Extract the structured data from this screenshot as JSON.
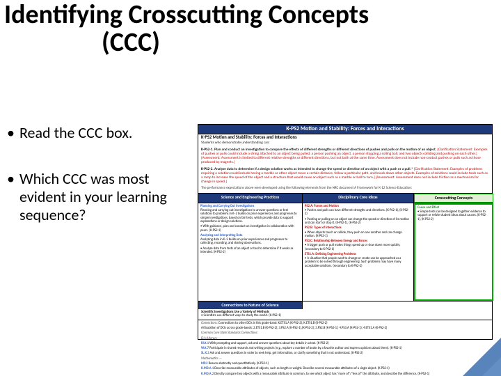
{
  "title": {
    "line1": "Identifying Crosscutting Concepts",
    "line2": "(CCC)"
  },
  "bullets": [
    "Read the CCC box.",
    "Which CCC was most evident in your learning sequence?"
  ],
  "figure": {
    "header": "K-PS2  Motion and Stability: Forces and Interactions",
    "subhead": "K-PS2   Motion and Stability: Forces and Interactions",
    "intro": "Students who demonstrate understanding can:",
    "pe": [
      {
        "code": "K-PS2-1.",
        "text": "Plan and conduct an investigation to compare the effects of different strengths or different directions of pushes and pulls on the motion of an object.",
        "clar": "[Clarification Statement: Examples of pushes or pulls could include a string attached to an object being pulled, a person pushing an object, a person stopping a rolling ball, and two objects colliding and pushing on each other.] [Assessment: Assessment is limited to different relative strengths or different directions, but not both at the same time. Assessment does not include non-contact pushes or pulls such as those produced by magnets.]"
      },
      {
        "code": "K-PS2-2.",
        "text": "Analyze data to determine if a design solution works as intended to change the speed or direction of an object with a push or a pull.*",
        "clar": "[Clarification Statement: Examples of problems requiring a solution could include having a marble or other object move a certain distance, follow a particular path, and knock down other objects. Examples of solutions could include tools such as a ramp to increase the speed of the object and a structure that would cause an object such as a marble or ball to turn.] [Assessment: Assessment does not include friction as a mechanism for change in speed.]"
      }
    ],
    "note": "The performance expectations above were developed using the following elements from the NRC document A Framework for K-12 Science Education:",
    "strip": {
      "sep": "Science and Engineering Practices",
      "dci": "Disciplinary Core Ideas",
      "ccc": "Crosscutting Concepts"
    },
    "cols": {
      "sep": {
        "h1": "Planning and Carrying Out Investigations",
        "p1": "Planning and carrying out investigations to answer questions or test solutions to problems in K–2 builds on prior experiences and progresses to simple investigations, based on fair tests, which provide data to support explanations or design solutions.",
        "b1": "With guidance, plan and conduct an investigation in collaboration with peers. (K-PS2-1)",
        "h2": "Analyzing and Interpreting Data",
        "p2": "Analyzing data in K–2 builds on prior experiences and progresses to collecting, recording, and sharing observations.",
        "b2": "Analyze data from tests of an object or tool to determine if it works as intended. (K-PS2-2)"
      },
      "dci": {
        "h1": "PS2.A: Forces and Motion",
        "b1": "Pushes and pulls can have different strengths and directions. (K-PS2-1), (K-PS2-2)",
        "b2": "Pushing or pulling on an object can change the speed or direction of its motion and can start or stop it. (K-PS2-1), (K-PS2-2)",
        "h2": "PS2.B: Types of Interactions",
        "b3": "When objects touch or collide, they push on one another and can change motion. (K-PS2-1)",
        "h3": "PS3.C: Relationship Between Energy and Forces",
        "b4": "A bigger push or pull makes things speed up or slow down more quickly. (secondary to K-PS2-1)",
        "h4": "ETS1.A: Defining Engineering Problems",
        "b5": "A situation that people want to change or create can be approached as a problem to be solved through engineering. Such problems may have many acceptable solutions. (secondary to K-PS2-2)"
      },
      "ccc": {
        "h1": "Cause and Effect",
        "b1": "Simple tests can be designed to gather evidence to support or refute student ideas about causes. (K-PS2-1), (K-PS2-2)"
      }
    },
    "nature": {
      "head": "Connections to Nature of Science",
      "h": "Scientific Investigations Use a Variety of Methods",
      "b": "Scientists use different ways to study the world. (K-PS2-1)"
    },
    "foot": {
      "conn": "Connections to other DCIs in this grade-band:  K.ETS1.A (K-PS2-2); K.ETS1.B (K-PS2-2)",
      "art": "Articulation of DCIs across grade-bands:  2.ETS1.B (K-PS2-2); 3.PS2.A (K-PS2-1),(K-PS2-2); 3.PS2.B (K-PS2-1); 4.PS3.A (K-PS2-1); 4.ETS1.A (K-PS2-2)",
      "ccss_label": "Common Core State Standards Connections:",
      "ela_label": "ELA/Literacy —",
      "ela": [
        {
          "code": "RI.K.1",
          "txt": "With prompting and support, ask and answer questions about key details in a text. (K-PS2-2)"
        },
        {
          "code": "W.K.7",
          "txt": "Participate in shared research and writing projects (e.g., explore a number of books by a favorite author and express opinions about them). (K-PS2-1)"
        },
        {
          "code": "SL.K.3",
          "txt": "Ask and answer questions in order to seek help, get information, or clarify something that is not understood. (K-PS2-2)"
        }
      ],
      "math_label": "Mathematics —",
      "math": [
        {
          "code": "MP.2",
          "txt": "Reason abstractly and quantitatively. (K-PS2-1)"
        },
        {
          "code": "K.MD.A.1",
          "txt": "Describe measurable attributes of objects, such as length or weight. Describe several measurable attributes of a single object. (K-PS2-1)"
        },
        {
          "code": "K.MD.A.2",
          "txt": "Directly compare two objects with a measurable attribute in common, to see which object has \"more of\"/\"less of\" the attribute, and describe the difference. (K-PS2-1)"
        }
      ]
    }
  }
}
